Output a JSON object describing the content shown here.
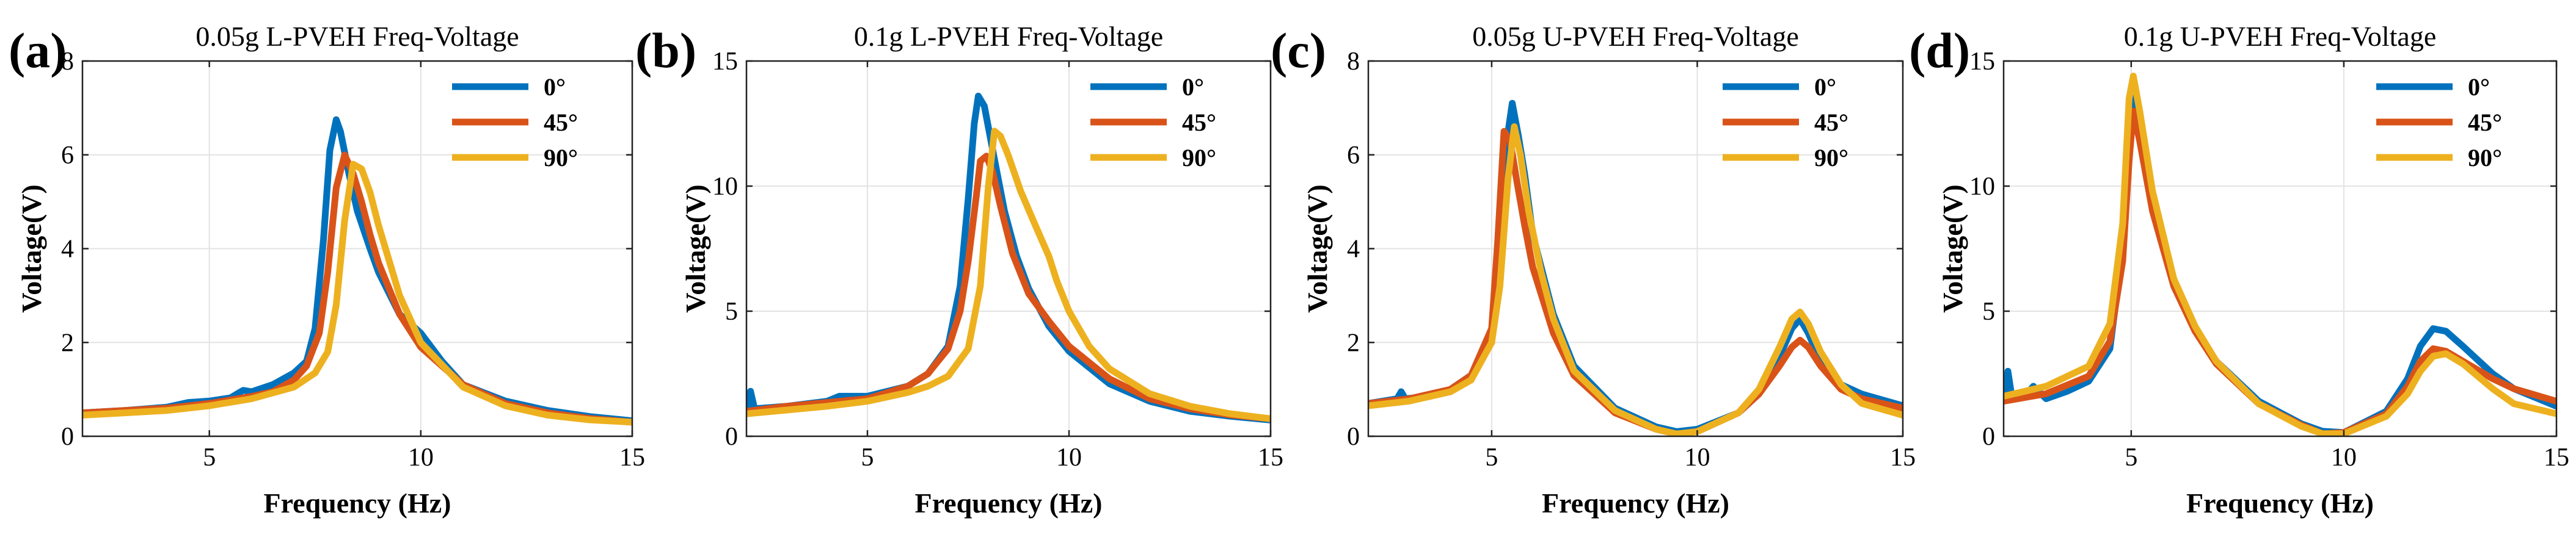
{
  "colors": {
    "deg0": "#0072BD",
    "deg45": "#D95319",
    "deg90": "#EDB120"
  },
  "chart_data": [
    {
      "type": "line",
      "panel_label": "(a)",
      "title": "0.05g L-PVEH Freq-Voltage",
      "xlabel": "Frequency (Hz)",
      "ylabel": "Voltage(V)",
      "xlim": [
        2,
        15
      ],
      "ylim": [
        0,
        8
      ],
      "xticks": [
        5,
        10,
        15
      ],
      "yticks": [
        0,
        2,
        4,
        6,
        8
      ],
      "legend": [
        "0°",
        "45°",
        "90°"
      ],
      "legend_position": "top-right",
      "grid": true,
      "series": [
        {
          "name": "0°",
          "color_key": "deg0",
          "x": [
            2,
            3,
            4,
            4.5,
            5,
            5.5,
            5.8,
            6,
            6.5,
            7,
            7.3,
            7.5,
            7.7,
            7.85,
            8.0,
            8.1,
            8.3,
            8.5,
            8.8,
            9,
            9.5,
            10,
            10.5,
            11,
            12,
            13,
            14,
            15
          ],
          "y": [
            0.5,
            0.55,
            0.62,
            0.72,
            0.75,
            0.82,
            0.98,
            0.95,
            1.1,
            1.35,
            1.6,
            2.3,
            4.2,
            6.1,
            6.75,
            6.5,
            5.6,
            4.8,
            4.0,
            3.5,
            2.6,
            2.2,
            1.6,
            1.1,
            0.75,
            0.55,
            0.42,
            0.33
          ]
        },
        {
          "name": "45°",
          "color_key": "deg45",
          "x": [
            2,
            3,
            4,
            5,
            6,
            6.5,
            7,
            7.3,
            7.6,
            7.8,
            8.0,
            8.2,
            8.4,
            8.6,
            8.8,
            9,
            9.5,
            10,
            11,
            12,
            13,
            14,
            15
          ],
          "y": [
            0.5,
            0.55,
            0.6,
            0.7,
            0.85,
            0.95,
            1.2,
            1.5,
            2.2,
            3.5,
            5.3,
            6.0,
            5.6,
            5.0,
            4.3,
            3.7,
            2.6,
            1.9,
            1.1,
            0.7,
            0.5,
            0.38,
            0.3
          ]
        },
        {
          "name": "90°",
          "color_key": "deg90",
          "x": [
            2,
            3,
            4,
            5,
            6,
            7,
            7.5,
            7.8,
            8.0,
            8.2,
            8.4,
            8.6,
            8.8,
            9.0,
            9.5,
            10,
            11,
            12,
            13,
            14,
            15
          ],
          "y": [
            0.45,
            0.5,
            0.55,
            0.65,
            0.8,
            1.05,
            1.35,
            1.8,
            2.8,
            4.6,
            5.8,
            5.7,
            5.2,
            4.5,
            3.0,
            2.0,
            1.05,
            0.65,
            0.45,
            0.35,
            0.3
          ]
        }
      ]
    },
    {
      "type": "line",
      "panel_label": "(b)",
      "title": "0.1g L-PVEH Freq-Voltage",
      "xlabel": "Frequency (Hz)",
      "ylabel": "Voltage(V)",
      "xlim": [
        2,
        15
      ],
      "ylim": [
        0,
        15
      ],
      "xticks": [
        5,
        10,
        15
      ],
      "yticks": [
        0,
        5,
        10,
        15
      ],
      "legend": [
        "0°",
        "45°",
        "90°"
      ],
      "legend_position": "top-right",
      "grid": true,
      "series": [
        {
          "name": "0°",
          "color_key": "deg0",
          "x": [
            2,
            2.1,
            2.2,
            3,
            4,
            4.3,
            5,
            6,
            6.5,
            7,
            7.3,
            7.5,
            7.65,
            7.75,
            7.9,
            8.1,
            8.4,
            8.7,
            9,
            9.5,
            10,
            11,
            12,
            13,
            14,
            15
          ],
          "y": [
            1.0,
            1.8,
            1.1,
            1.2,
            1.4,
            1.6,
            1.6,
            2.0,
            2.5,
            3.6,
            6.0,
            9.5,
            12.5,
            13.6,
            13.2,
            11.5,
            9.0,
            7.2,
            5.9,
            4.4,
            3.4,
            2.1,
            1.4,
            1.0,
            0.8,
            0.65
          ]
        },
        {
          "name": "45°",
          "color_key": "deg45",
          "x": [
            2,
            3,
            4,
            5,
            6,
            6.5,
            7,
            7.3,
            7.5,
            7.7,
            7.8,
            7.95,
            8.1,
            8.3,
            8.6,
            9,
            9.5,
            10,
            11,
            12,
            13,
            14,
            15
          ],
          "y": [
            1.0,
            1.2,
            1.35,
            1.5,
            2.0,
            2.5,
            3.5,
            5.0,
            7.0,
            9.6,
            11.0,
            11.2,
            10.6,
            9.2,
            7.3,
            5.7,
            4.6,
            3.6,
            2.3,
            1.5,
            1.1,
            0.85,
            0.7
          ]
        },
        {
          "name": "90°",
          "color_key": "deg90",
          "x": [
            2,
            3,
            4,
            5,
            6,
            6.5,
            7,
            7.5,
            7.8,
            8.0,
            8.15,
            8.3,
            8.5,
            8.8,
            9.2,
            9.5,
            9.7,
            10,
            10.5,
            11,
            12,
            13,
            14,
            15
          ],
          "y": [
            0.9,
            1.05,
            1.2,
            1.4,
            1.75,
            2.0,
            2.4,
            3.5,
            6.0,
            10.0,
            12.2,
            12.0,
            11.2,
            9.8,
            8.3,
            7.2,
            6.2,
            5.0,
            3.6,
            2.7,
            1.7,
            1.2,
            0.9,
            0.7
          ]
        }
      ]
    },
    {
      "type": "line",
      "panel_label": "(c)",
      "title": "0.05g U-PVEH Freq-Voltage",
      "xlabel": "Frequency (Hz)",
      "ylabel": "Voltage(V)",
      "xlim": [
        2,
        15
      ],
      "ylim": [
        0,
        8
      ],
      "xticks": [
        5,
        10,
        15
      ],
      "yticks": [
        0,
        2,
        4,
        6,
        8
      ],
      "legend": [
        "0°",
        "45°",
        "90°"
      ],
      "legend_position": "top-right",
      "grid": true,
      "series": [
        {
          "name": "0°",
          "color_key": "deg0",
          "x": [
            2,
            2.7,
            2.8,
            2.9,
            3.5,
            4,
            4.5,
            5,
            5.2,
            5.35,
            5.5,
            5.65,
            5.8,
            6,
            6.5,
            7,
            8,
            9,
            9.5,
            10,
            11,
            11.5,
            12,
            12.3,
            12.5,
            12.7,
            13,
            13.5,
            14,
            15
          ],
          "y": [
            0.7,
            0.8,
            0.95,
            0.8,
            0.85,
            1.0,
            1.3,
            2.0,
            3.8,
            6.2,
            7.1,
            6.4,
            5.6,
            4.3,
            2.6,
            1.5,
            0.6,
            0.2,
            0.1,
            0.15,
            0.5,
            0.9,
            1.7,
            2.3,
            2.5,
            2.2,
            1.6,
            1.1,
            0.9,
            0.65
          ]
        },
        {
          "name": "45°",
          "color_key": "deg45",
          "x": [
            2,
            3,
            4,
            4.5,
            5,
            5.15,
            5.3,
            5.45,
            5.6,
            5.8,
            6,
            6.5,
            7,
            8,
            9,
            9.5,
            10,
            11,
            11.5,
            12,
            12.3,
            12.5,
            12.7,
            13,
            13.5,
            14,
            15
          ],
          "y": [
            0.7,
            0.8,
            1.0,
            1.3,
            2.3,
            4.2,
            6.5,
            6.3,
            5.5,
            4.5,
            3.6,
            2.2,
            1.3,
            0.5,
            0.15,
            0.05,
            0.1,
            0.5,
            0.9,
            1.5,
            1.9,
            2.05,
            1.9,
            1.5,
            1.0,
            0.8,
            0.6
          ]
        },
        {
          "name": "90°",
          "color_key": "deg90",
          "x": [
            2,
            3,
            4,
            4.5,
            5,
            5.2,
            5.4,
            5.55,
            5.7,
            5.9,
            6.2,
            6.5,
            7,
            8,
            9,
            9.5,
            10,
            11,
            11.5,
            12,
            12.3,
            12.5,
            12.7,
            13,
            13.5,
            14,
            15
          ],
          "y": [
            0.65,
            0.75,
            0.95,
            1.2,
            2.0,
            3.2,
            5.5,
            6.6,
            6.0,
            4.8,
            3.5,
            2.5,
            1.4,
            0.55,
            0.15,
            0.05,
            0.1,
            0.5,
            1.0,
            1.9,
            2.5,
            2.65,
            2.4,
            1.8,
            1.1,
            0.7,
            0.45
          ]
        }
      ]
    },
    {
      "type": "line",
      "panel_label": "(d)",
      "title": "0.1g U-PVEH Freq-Voltage",
      "xlabel": "Frequency (Hz)",
      "ylabel": "Voltage(V)",
      "xlim": [
        2,
        15
      ],
      "ylim": [
        0,
        15
      ],
      "xticks": [
        5,
        10,
        15
      ],
      "yticks": [
        0,
        5,
        10,
        15
      ],
      "legend": [
        "0°",
        "45°",
        "90°"
      ],
      "legend_position": "top-right",
      "grid": true,
      "series": [
        {
          "name": "0°",
          "color_key": "deg0",
          "x": [
            2,
            2.1,
            2.2,
            2.5,
            2.7,
            3,
            3.5,
            4,
            4.5,
            4.8,
            4.95,
            5.05,
            5.2,
            5.5,
            6,
            6.5,
            7,
            8,
            9,
            9.5,
            10,
            11,
            11.5,
            11.8,
            12.1,
            12.4,
            12.8,
            13.5,
            14,
            15
          ],
          "y": [
            1.6,
            2.6,
            1.5,
            1.6,
            2.0,
            1.5,
            1.8,
            2.2,
            3.5,
            7.5,
            12.5,
            14.2,
            12.5,
            9.5,
            6.2,
            4.3,
            3.0,
            1.4,
            0.5,
            0.2,
            0.15,
            1.0,
            2.3,
            3.6,
            4.3,
            4.2,
            3.6,
            2.5,
            1.9,
            1.2
          ]
        },
        {
          "name": "45°",
          "color_key": "deg45",
          "x": [
            2,
            3,
            4,
            4.5,
            4.8,
            4.95,
            5.05,
            5.2,
            5.5,
            6,
            6.5,
            7,
            8,
            9,
            9.5,
            10,
            11,
            11.5,
            11.8,
            12.1,
            12.4,
            12.8,
            13.5,
            14,
            15
          ],
          "y": [
            1.4,
            1.7,
            2.4,
            3.8,
            7.0,
            11.0,
            13.0,
            11.8,
            9.0,
            6.0,
            4.2,
            2.9,
            1.3,
            0.45,
            0.1,
            0.15,
            0.9,
            2.0,
            3.0,
            3.5,
            3.4,
            3.0,
            2.3,
            1.9,
            1.4
          ]
        },
        {
          "name": "90°",
          "color_key": "deg90",
          "x": [
            2,
            3,
            4,
            4.5,
            4.8,
            4.95,
            5.05,
            5.2,
            5.5,
            6,
            6.5,
            7,
            8,
            9,
            9.5,
            10,
            11,
            11.5,
            11.8,
            12.1,
            12.4,
            12.8,
            13.5,
            14,
            15
          ],
          "y": [
            1.6,
            2.0,
            2.8,
            4.5,
            8.5,
            13.5,
            14.4,
            13.0,
            9.8,
            6.3,
            4.4,
            3.0,
            1.3,
            0.4,
            0.1,
            0.1,
            0.8,
            1.7,
            2.6,
            3.2,
            3.3,
            2.9,
            1.9,
            1.3,
            0.9
          ]
        }
      ]
    }
  ]
}
